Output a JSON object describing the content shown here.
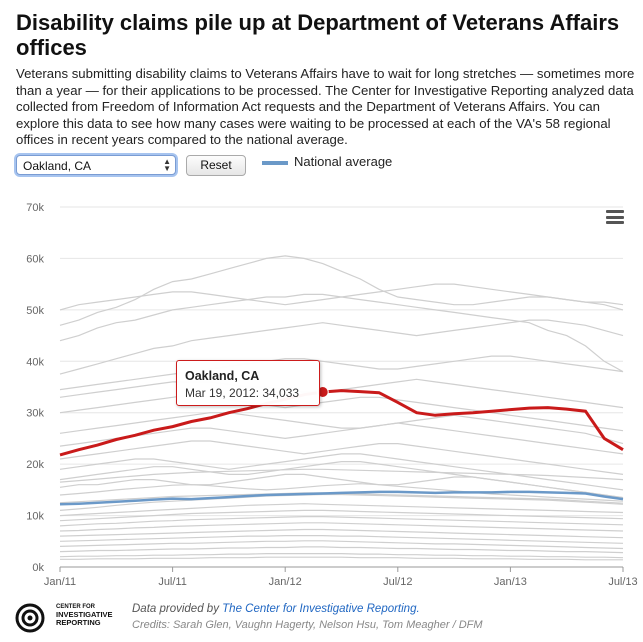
{
  "header": {
    "title": "Disability claims pile up at Department of Veterans Affairs offices",
    "description": "Veterans submitting disability claims to Veterans Affairs have to wait for long stretches — sometimes more than a year — for their applications to be processed. The Center for Investigative Reporting analyzed data collected from Freedom of Information Act requests and the Department of Veterans Affairs. You can explore this data to see how many cases were waiting to be processed at each of the VA's 58 regional offices in recent years compared to the national average."
  },
  "controls": {
    "selected_office": "Oakland, CA",
    "reset_label": "Reset",
    "legend_label": "National average"
  },
  "colors": {
    "highlight": "#c91a1a",
    "national": "#6b99c8",
    "background_lines": "#cfcfcf",
    "grid": "#e6e6e6"
  },
  "tooltip": {
    "title": "Oakland, CA",
    "value": "Mar 19, 2012: 34,033"
  },
  "icons": {
    "menu": "hamburger-menu-icon",
    "logo": "cir-logo-icon"
  },
  "footer": {
    "logo_line1": "CENTER FOR",
    "logo_line2": "INVESTIGATIVE",
    "logo_line3": "REPORTING",
    "provided_prefix": "Data provided by",
    "provided_link": "The Center for Investigative Reporting.",
    "credits": "Credits: Sarah Glen, Vaughn Hagerty, Nelson Hsu, Tom Meagher / DFM"
  },
  "chart_data": {
    "type": "line",
    "xlabel": "",
    "ylabel": "",
    "ylim": [
      0,
      70000
    ],
    "xlim": [
      "2011-01",
      "2013-07"
    ],
    "y_ticks": [
      "0k",
      "10k",
      "20k",
      "30k",
      "40k",
      "50k",
      "60k",
      "70k"
    ],
    "x_ticks": [
      "Jan/11",
      "Jul/11",
      "Jan/12",
      "Jul/12",
      "Jan/13",
      "Jul/13"
    ],
    "grid": true,
    "legend_position": "top",
    "x_months": [
      0,
      1,
      2,
      3,
      4,
      5,
      6,
      7,
      8,
      9,
      10,
      11,
      12,
      13,
      14,
      15,
      16,
      17,
      18,
      19,
      20,
      21,
      22,
      23,
      24,
      25,
      26,
      27,
      28,
      29,
      30
    ],
    "highlight": {
      "name": "Oakland, CA",
      "values": [
        21800,
        22800,
        23700,
        24800,
        25600,
        26600,
        27300,
        28300,
        29000,
        30000,
        30800,
        31800,
        32600,
        33500,
        34033,
        34300,
        34100,
        33900,
        32000,
        30000,
        29500,
        29800,
        30000,
        30300,
        30600,
        30900,
        31000,
        30700,
        30300,
        25000,
        22800
      ]
    },
    "national_average": {
      "name": "National average",
      "values": [
        12200,
        12300,
        12500,
        12700,
        12900,
        13100,
        13300,
        13200,
        13400,
        13600,
        13800,
        14000,
        14100,
        14200,
        14300,
        14400,
        14500,
        14600,
        14600,
        14500,
        14400,
        14500,
        14500,
        14500,
        14600,
        14600,
        14500,
        14400,
        14300,
        13700,
        13200
      ]
    },
    "other_offices": [
      [
        47000,
        48000,
        49500,
        50500,
        52000,
        54000,
        55500,
        56000,
        57000,
        58000,
        59000,
        60000,
        60500,
        60000,
        59000,
        57500,
        56000,
        54000,
        52500,
        52000,
        51500,
        51000,
        51000,
        51500,
        52000,
        52500,
        52500,
        52000,
        51500,
        51000,
        50000
      ],
      [
        50000,
        51000,
        51500,
        52000,
        52500,
        53000,
        53500,
        53500,
        53000,
        52500,
        52000,
        51500,
        51000,
        51500,
        52000,
        52500,
        53000,
        53500,
        54000,
        54500,
        55000,
        55000,
        54500,
        54000,
        53500,
        53000,
        52500,
        52000,
        51500,
        51500,
        51000
      ],
      [
        44000,
        45000,
        46500,
        47500,
        48000,
        49000,
        50000,
        50500,
        51000,
        51500,
        52000,
        52500,
        52500,
        53000,
        53000,
        52500,
        52000,
        51500,
        51000,
        50500,
        50000,
        49500,
        49000,
        48500,
        48000,
        47500,
        46000,
        45000,
        43000,
        40000,
        38000
      ],
      [
        37500,
        38500,
        39500,
        40500,
        41500,
        42500,
        43000,
        44000,
        44500,
        45000,
        45500,
        46000,
        46500,
        47000,
        47500,
        47000,
        46500,
        46000,
        45500,
        45000,
        45500,
        46000,
        46500,
        47000,
        47500,
        48000,
        48000,
        47500,
        47000,
        46000,
        45000
      ],
      [
        34500,
        35000,
        35500,
        36000,
        36500,
        37000,
        37500,
        38000,
        38500,
        39000,
        39500,
        40000,
        40500,
        40500,
        40000,
        39500,
        39000,
        38500,
        38500,
        39000,
        39500,
        40000,
        40500,
        41000,
        41000,
        40500,
        40000,
        39500,
        39000,
        38500,
        38000
      ],
      [
        33000,
        33500,
        34000,
        34500,
        35000,
        35500,
        36000,
        36000,
        36000,
        35500,
        35000,
        35000,
        34500,
        34000,
        34000,
        34500,
        35000,
        35500,
        36000,
        36500,
        36000,
        35500,
        35000,
        34500,
        34000,
        33500,
        33000,
        32500,
        32000,
        31500,
        31000
      ],
      [
        30000,
        30500,
        31000,
        31500,
        32000,
        32500,
        33000,
        33500,
        33000,
        32500,
        32000,
        31500,
        31000,
        31500,
        32000,
        32500,
        33000,
        33000,
        32500,
        32000,
        31500,
        31000,
        30500,
        30000,
        29500,
        29000,
        28500,
        28000,
        27500,
        27000,
        26500
      ],
      [
        26000,
        26500,
        27000,
        27500,
        28000,
        28500,
        29000,
        29500,
        30000,
        30000,
        29500,
        29000,
        28500,
        28000,
        27500,
        27000,
        27000,
        27500,
        28000,
        28500,
        29000,
        29500,
        29000,
        28500,
        28000,
        27500,
        27000,
        26500,
        26000,
        25000,
        24000
      ],
      [
        23500,
        24000,
        24500,
        25000,
        25500,
        26000,
        26500,
        27000,
        27000,
        26500,
        26000,
        25500,
        25000,
        25500,
        26000,
        26500,
        27000,
        27500,
        28000,
        27500,
        27000,
        26500,
        26000,
        25500,
        25000,
        24500,
        24000,
        23500,
        23000,
        22500,
        22000
      ],
      [
        21000,
        21500,
        22000,
        22500,
        23000,
        23500,
        24000,
        24500,
        24500,
        24000,
        23500,
        23000,
        22500,
        22000,
        22500,
        23000,
        23500,
        24000,
        24000,
        23500,
        23000,
        22500,
        22000,
        21500,
        21000,
        20500,
        20000,
        19500,
        19000,
        18500,
        18000
      ],
      [
        19000,
        19500,
        20000,
        20500,
        21000,
        21000,
        20500,
        20000,
        19500,
        19000,
        19500,
        20000,
        20500,
        21000,
        21500,
        22000,
        22000,
        21500,
        21000,
        20500,
        20000,
        19500,
        19000,
        18500,
        18000,
        17500,
        17000,
        16500,
        16000,
        15500,
        15000
      ],
      [
        17000,
        17500,
        18000,
        18500,
        19000,
        19500,
        19500,
        19000,
        18500,
        18000,
        18000,
        18500,
        19000,
        19500,
        20000,
        20500,
        20500,
        20000,
        19500,
        19000,
        18500,
        18000,
        17500,
        17000,
        16500,
        16000,
        15500,
        15000,
        14500,
        14000,
        13500
      ],
      [
        15500,
        16000,
        16000,
        16500,
        17000,
        17000,
        16500,
        16000,
        16000,
        16500,
        17000,
        17500,
        18000,
        18000,
        17500,
        17000,
        16500,
        16000,
        16000,
        16500,
        17000,
        17500,
        17500,
        17000,
        16500,
        16000,
        15500,
        15000,
        14500,
        14000,
        13500
      ],
      [
        14000,
        14300,
        14600,
        15000,
        15300,
        15600,
        15900,
        16000,
        15800,
        15500,
        15200,
        15000,
        15200,
        15500,
        15800,
        16000,
        16200,
        16000,
        15700,
        15400,
        15100,
        14800,
        14500,
        14200,
        14000,
        13800,
        13600,
        13400,
        13200,
        13000,
        12800
      ],
      [
        11000,
        11300,
        11600,
        12000,
        12300,
        12600,
        12800,
        13000,
        13200,
        13400,
        13600,
        13800,
        13900,
        14000,
        14100,
        14100,
        14000,
        13900,
        13800,
        13700,
        13600,
        13500,
        13400,
        13300,
        13200,
        13100,
        13000,
        12800,
        12600,
        12400,
        12200
      ],
      [
        10000,
        10200,
        10400,
        10600,
        10800,
        11000,
        11200,
        11400,
        11600,
        11800,
        12000,
        12100,
        12200,
        12300,
        12200,
        12100,
        12000,
        11900,
        11800,
        11700,
        11600,
        11500,
        11400,
        11300,
        11200,
        11100,
        11000,
        10900,
        10800,
        10700,
        10600
      ],
      [
        9000,
        9200,
        9400,
        9600,
        9800,
        10000,
        10200,
        10400,
        10500,
        10600,
        10700,
        10800,
        10900,
        11000,
        11000,
        10900,
        10800,
        10700,
        10600,
        10500,
        10400,
        10300,
        10200,
        10100,
        10000,
        9900,
        9800,
        9700,
        9600,
        9500,
        9400
      ],
      [
        8000,
        8200,
        8400,
        8500,
        8700,
        8900,
        9000,
        9200,
        9300,
        9400,
        9500,
        9600,
        9700,
        9800,
        9800,
        9700,
        9600,
        9500,
        9400,
        9300,
        9200,
        9100,
        9000,
        8900,
        8800,
        8700,
        8600,
        8500,
        8400,
        8300,
        8200
      ],
      [
        7000,
        7100,
        7300,
        7400,
        7600,
        7700,
        7900,
        8000,
        8100,
        8200,
        8300,
        8400,
        8500,
        8600,
        8600,
        8500,
        8400,
        8300,
        8200,
        8100,
        8000,
        7900,
        7800,
        7700,
        7600,
        7500,
        7400,
        7300,
        7200,
        7100,
        7000
      ],
      [
        6000,
        6100,
        6200,
        6300,
        6400,
        6500,
        6600,
        6700,
        6800,
        6900,
        7000,
        7100,
        7200,
        7300,
        7300,
        7200,
        7100,
        7000,
        6900,
        6800,
        6700,
        6600,
        6500,
        6400,
        6300,
        6200,
        6100,
        6000,
        5900,
        5800,
        5700
      ],
      [
        5000,
        5100,
        5200,
        5300,
        5400,
        5500,
        5600,
        5700,
        5800,
        5900,
        6000,
        6000,
        6100,
        6100,
        6100,
        6000,
        6000,
        5900,
        5800,
        5700,
        5600,
        5500,
        5400,
        5300,
        5200,
        5100,
        5000,
        4900,
        4800,
        4700,
        4600
      ],
      [
        4000,
        4100,
        4200,
        4300,
        4400,
        4500,
        4600,
        4600,
        4700,
        4800,
        4900,
        5000,
        5000,
        5100,
        5100,
        5000,
        4900,
        4800,
        4700,
        4600,
        4500,
        4500,
        4400,
        4300,
        4200,
        4100,
        4000,
        3900,
        3800,
        3700,
        3600
      ],
      [
        3000,
        3100,
        3200,
        3200,
        3300,
        3400,
        3500,
        3500,
        3600,
        3700,
        3700,
        3800,
        3800,
        3900,
        3900,
        3800,
        3800,
        3700,
        3600,
        3600,
        3500,
        3400,
        3400,
        3300,
        3200,
        3200,
        3100,
        3000,
        3000,
        2900,
        2800
      ],
      [
        2000,
        2100,
        2100,
        2200,
        2200,
        2300,
        2300,
        2400,
        2400,
        2500,
        2500,
        2600,
        2600,
        2600,
        2600,
        2600,
        2500,
        2500,
        2400,
        2400,
        2300,
        2300,
        2200,
        2200,
        2100,
        2100,
        2000,
        2000,
        1900,
        1900,
        1800
      ],
      [
        1500,
        1500,
        1600,
        1600,
        1600,
        1700,
        1700,
        1700,
        1800,
        1800,
        1800,
        1900,
        1900,
        1900,
        1900,
        1900,
        1800,
        1800,
        1800,
        1700,
        1700,
        1700,
        1600,
        1600,
        1600,
        1500,
        1500,
        1500,
        1400,
        1400,
        1400
      ],
      [
        16500,
        16800,
        17100,
        17400,
        17700,
        18000,
        18200,
        18400,
        18500,
        18600,
        18700,
        18800,
        18900,
        19000,
        19000,
        18900,
        18800,
        18700,
        18600,
        18500,
        18400,
        18300,
        18200,
        18100,
        18000,
        17900,
        17800,
        17600,
        17400,
        17200,
        17000
      ],
      [
        12500,
        12700,
        12900,
        13100,
        13300,
        13500,
        13700,
        13800,
        13900,
        14000,
        14100,
        14200,
        14300,
        14400,
        14400,
        14300,
        14200,
        14100,
        14000,
        13900,
        13800,
        13700,
        13600,
        13500,
        13400,
        13300,
        13200,
        13000,
        12800,
        12600,
        12400
      ]
    ]
  }
}
